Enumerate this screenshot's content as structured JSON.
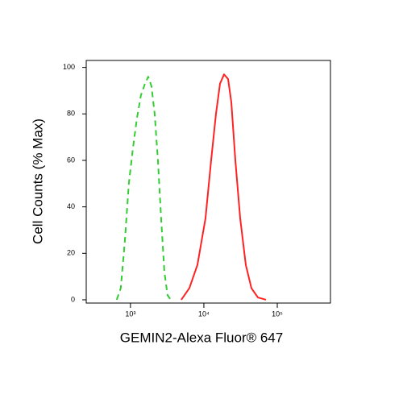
{
  "chart_data": {
    "type": "line",
    "xlabel": "GEMIN2-Alexa Fluor® 647",
    "ylabel": "Cell Counts (% Max)",
    "xscale": "log",
    "xlim": [
      250,
      530000
    ],
    "ylim": [
      -1.4,
      103
    ],
    "xticks": [
      {
        "value": 1000,
        "label": "10³"
      },
      {
        "value": 10000,
        "label": "10⁴"
      },
      {
        "value": 100000,
        "label": "10⁵"
      }
    ],
    "yticks": [
      0,
      20,
      40,
      60,
      80,
      100
    ],
    "series": [
      {
        "color": "#33cc33",
        "dash": true,
        "x": [
          650,
          738,
          838,
          951,
          1079,
          1224,
          1389,
          1578,
          1746,
          1931,
          2138,
          2368,
          2618,
          2898,
          3200,
          3542
        ],
        "values": [
          0,
          5,
          25,
          50,
          65,
          78,
          88,
          93,
          96,
          92,
          80,
          60,
          35,
          12,
          2,
          0
        ]
      },
      {
        "color": "#ff2222",
        "dash": false,
        "x": [
          4920,
          6340,
          8170,
          10520,
          12560,
          14620,
          16590,
          18840,
          21380,
          23660,
          26850,
          31260,
          37270,
          44460,
          54430,
          70150
        ],
        "values": [
          0,
          5,
          15,
          35,
          60,
          80,
          93,
          97,
          95,
          85,
          60,
          35,
          15,
          5,
          1,
          0
        ]
      }
    ]
  }
}
